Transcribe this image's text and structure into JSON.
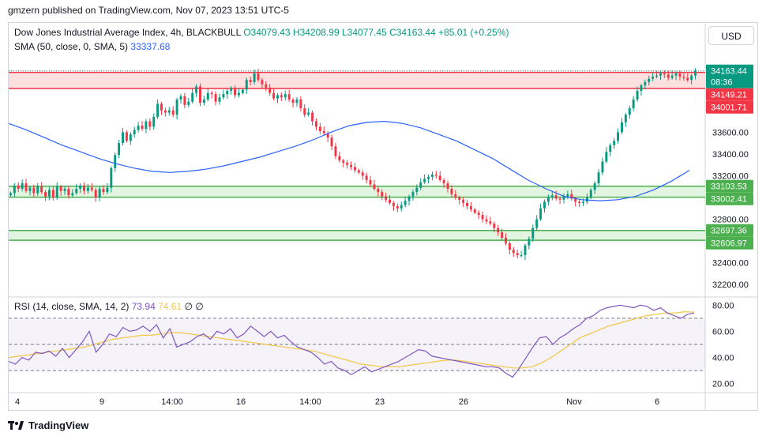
{
  "header": {
    "publisher_text": "gmzern published on TradingView.com, Nov 07, 2023 13:51 UTC-5"
  },
  "legend": {
    "symbol": "Dow Jones Industrial Average Index, 4h, BLACKBULL",
    "open": "O34079.43",
    "high": "H34208.99",
    "low": "L34077.45",
    "close": "C34163.44",
    "change": "+85.01 (+0.25%)",
    "sma_label": "SMA (50, close, 0, SMA, 5)",
    "sma_value": "33337.68",
    "rsi_label": "RSI (14, close, SMA, 14, 2)",
    "rsi_value": "73.94",
    "rsi_ma_value": "74.61",
    "rsi_extra": "∅ ∅"
  },
  "toolbar": {
    "currency": "USD"
  },
  "footer": {
    "brand": "TradingView"
  },
  "colors": {
    "up": "#089981",
    "down": "#f23645",
    "sma": "#2962ff",
    "rsi": "#7e57c2",
    "rsi_ma": "#f2c744",
    "resistance_fill": "#fcd9d9",
    "support_fill": "#d9f2da"
  },
  "chart_data": [
    {
      "type": "candlestick",
      "title": "Dow Jones Industrial Average Index, 4h, BLACKBULL",
      "ylim": [
        32100,
        34350
      ],
      "y_ticks": [
        "33600.00",
        "33400.00",
        "33200.00",
        "32800.00",
        "32600.00",
        "32400.00",
        "32200.00"
      ],
      "x_ticks": [
        "4",
        "9",
        "14:00",
        "16",
        "14:00",
        "23",
        "26",
        "Nov",
        "6"
      ],
      "price_tags": [
        {
          "label": "34163.44",
          "sub": "08:36",
          "kind": "last",
          "value": 34163.44
        },
        {
          "label": "34149.21",
          "kind": "res",
          "value": 34149.21
        },
        {
          "label": "34001.71",
          "kind": "res",
          "value": 34001.71
        },
        {
          "label": "33103.53",
          "kind": "sup",
          "value": 33103.53
        },
        {
          "label": "33002.41",
          "kind": "sup",
          "value": 33002.41
        },
        {
          "label": "32697.36",
          "kind": "sup",
          "value": 32697.36
        },
        {
          "label": "32606.97",
          "kind": "sup",
          "value": 32606.97
        }
      ],
      "zones": [
        {
          "kind": "resistance",
          "from": 34001.71,
          "to": 34149.21
        },
        {
          "kind": "support",
          "from": 33002.41,
          "to": 33103.53
        },
        {
          "kind": "support",
          "from": 32606.97,
          "to": 32697.36
        }
      ],
      "close": [
        33040,
        33110,
        33080,
        33130,
        33060,
        33090,
        33040,
        33100,
        33050,
        33010,
        33070,
        33000,
        33100,
        33060,
        33080,
        33020,
        33040,
        33080,
        33110,
        33060,
        33090,
        33070,
        33000,
        33080,
        33050,
        33090,
        33270,
        33390,
        33500,
        33600,
        33520,
        33580,
        33620,
        33660,
        33630,
        33700,
        33650,
        33740,
        33860,
        33800,
        33780,
        33800,
        33760,
        33900,
        33930,
        33850,
        33880,
        33960,
        34020,
        33870,
        33900,
        33960,
        33950,
        33880,
        33920,
        33950,
        33980,
        34000,
        33940,
        33960,
        33990,
        34080,
        34060,
        34140,
        34080,
        34040,
        34010,
        33960,
        33910,
        33940,
        33920,
        33950,
        33900,
        33870,
        33900,
        33820,
        33760,
        33780,
        33700,
        33650,
        33610,
        33590,
        33550,
        33470,
        33380,
        33340,
        33320,
        33300,
        33280,
        33250,
        33230,
        33200,
        33160,
        33120,
        33080,
        33050,
        33010,
        32980,
        32950,
        32920,
        32900,
        32930,
        32970,
        33010,
        33050,
        33090,
        33140,
        33170,
        33190,
        33210,
        33200,
        33160,
        33130,
        33080,
        33030,
        33000,
        32980,
        32950,
        32920,
        32890,
        32860,
        32840,
        32800,
        32780,
        32760,
        32720,
        32680,
        32630,
        32580,
        32520,
        32490,
        32470,
        32470,
        32560,
        32620,
        32720,
        32800,
        32900,
        32960,
        33000,
        33020,
        32990,
        32980,
        33010,
        33030,
        32990,
        32960,
        32950,
        32960,
        33000,
        33070,
        33130,
        33230,
        33330,
        33420,
        33480,
        33520,
        33600,
        33690,
        33760,
        33820,
        33900,
        33980,
        34030,
        34060,
        34090,
        34110,
        34120,
        34140,
        34130,
        34100,
        34120,
        34140,
        34110,
        34100,
        34080,
        34120,
        34163.44
      ],
      "sma": [
        33680,
        33620,
        33550,
        33480,
        33420,
        33360,
        33310,
        33270,
        33240,
        33230,
        33240,
        33260,
        33290,
        33330,
        33370,
        33420,
        33470,
        33530,
        33600,
        33660,
        33690,
        33700,
        33680,
        33640,
        33580,
        33520,
        33440,
        33360,
        33260,
        33160,
        33080,
        33010,
        32980,
        32970,
        32980,
        33010,
        33070,
        33150,
        33250
      ],
      "rsi_ylim": [
        15,
        85
      ],
      "rsi_ticks": [
        "80.00",
        "60.00",
        "40.00",
        "20.00"
      ],
      "rsi": [
        37,
        35,
        40,
        38,
        44,
        43,
        45,
        41,
        47,
        40,
        46,
        52,
        60,
        44,
        50,
        58,
        56,
        63,
        60,
        61,
        64,
        60,
        65,
        55,
        62,
        48,
        50,
        52,
        56,
        58,
        54,
        60,
        58,
        62,
        55,
        58,
        64,
        60,
        56,
        60,
        55,
        57,
        52,
        48,
        46,
        44,
        40,
        35,
        37,
        32,
        30,
        27,
        30,
        33,
        29,
        31,
        33,
        35,
        37,
        40,
        43,
        46,
        45,
        41,
        40,
        39,
        38,
        37,
        36,
        35,
        34,
        33,
        33,
        32,
        28,
        25,
        32,
        40,
        48,
        55,
        56,
        50,
        55,
        58,
        62,
        65,
        70,
        72,
        76,
        78,
        79,
        80,
        79,
        78,
        80,
        79,
        76,
        78,
        74,
        72,
        70,
        73,
        74
      ],
      "rsi_ma": [
        40,
        41,
        42,
        43,
        44,
        45,
        46,
        47,
        48,
        50,
        52,
        54,
        55,
        56,
        57,
        57,
        58,
        59,
        59,
        58,
        57,
        56,
        55,
        54,
        53,
        52,
        51,
        50,
        49,
        48,
        47,
        46,
        45,
        43,
        41,
        39,
        37,
        35,
        34,
        33,
        33,
        33,
        34,
        35,
        36,
        37,
        38,
        38,
        37,
        36,
        35,
        34,
        33,
        32,
        32,
        33,
        36,
        40,
        45,
        50,
        55,
        58,
        61,
        64,
        66,
        68,
        70,
        72,
        73,
        74,
        74,
        75,
        74.61
      ]
    }
  ]
}
